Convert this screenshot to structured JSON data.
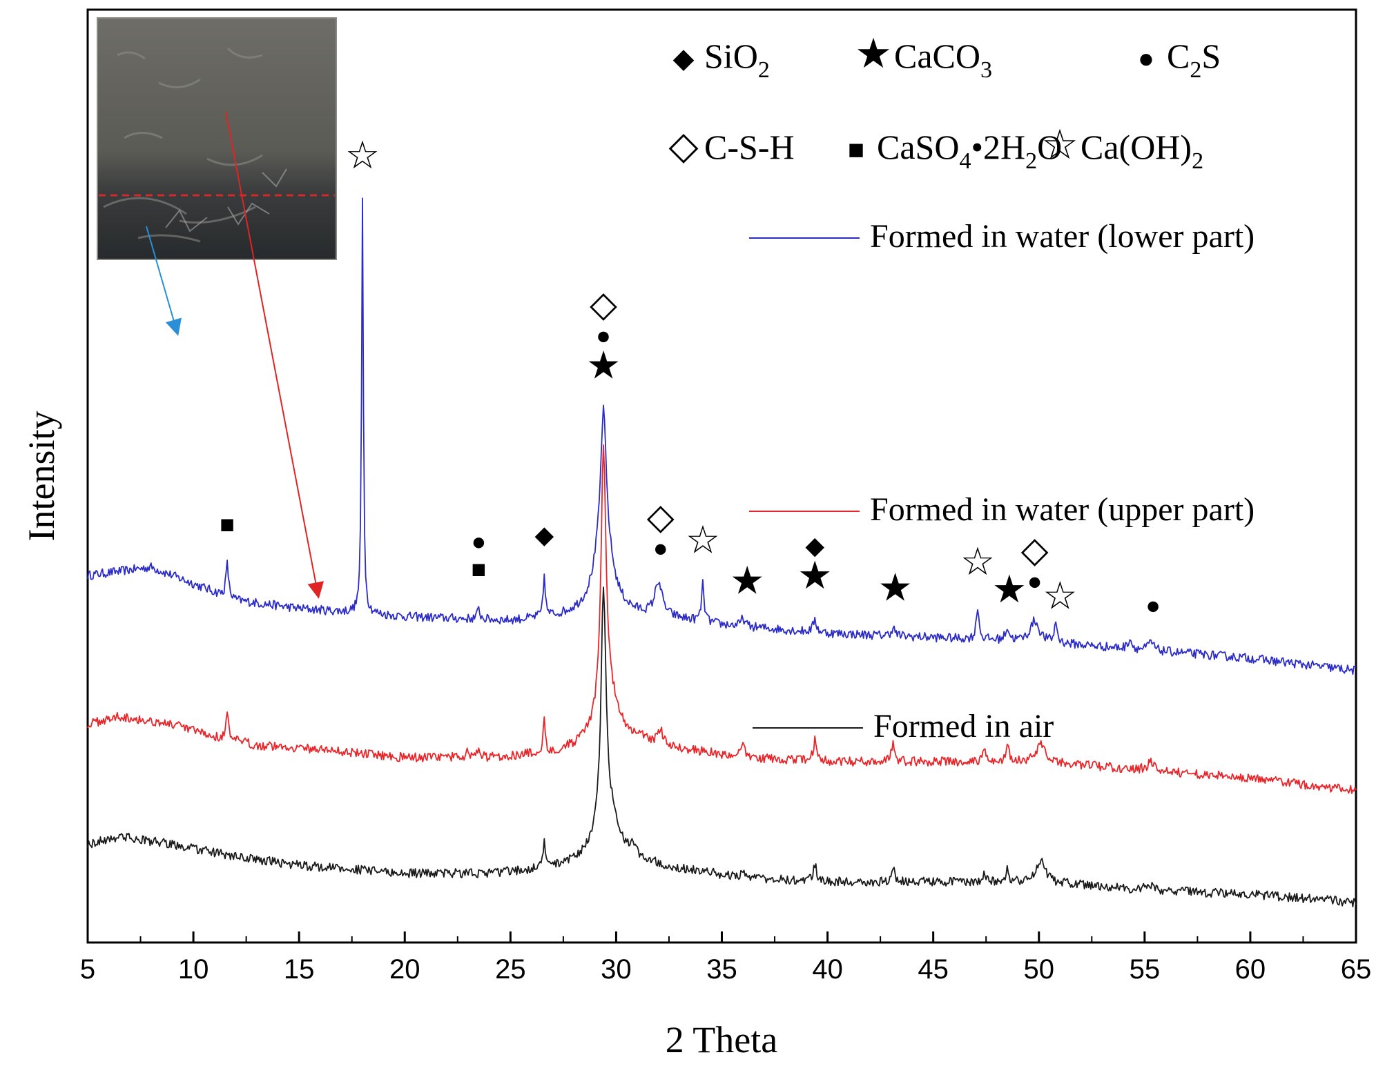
{
  "chart_data": {
    "type": "line",
    "title": "",
    "xlabel": "2 Theta",
    "ylabel": "Intensity",
    "xlim": [
      5,
      65
    ],
    "xticks": [
      5,
      10,
      15,
      20,
      25,
      30,
      35,
      40,
      45,
      50,
      55,
      60,
      65
    ],
    "yticks_shown": false,
    "legend_position": "right, next to each curve",
    "series": [
      {
        "name": "Formed in water (lower part)",
        "color": "#2b2bc8",
        "baseline": [
          [
            5,
            0.82
          ],
          [
            8,
            0.84
          ],
          [
            10,
            0.8
          ],
          [
            12,
            0.76
          ],
          [
            15,
            0.74
          ],
          [
            20,
            0.72
          ],
          [
            25,
            0.71
          ],
          [
            28,
            0.72
          ],
          [
            32,
            0.72
          ],
          [
            35,
            0.7
          ],
          [
            40,
            0.68
          ],
          [
            45,
            0.67
          ],
          [
            50,
            0.66
          ],
          [
            55,
            0.64
          ],
          [
            60,
            0.62
          ],
          [
            65,
            0.59
          ]
        ],
        "peaks": [
          [
            11.6,
            0.08,
            0.15
          ],
          [
            18.0,
            1.0,
            0.1
          ],
          [
            23.5,
            0.025,
            0.15
          ],
          [
            26.6,
            0.1,
            0.12
          ],
          [
            29.4,
            0.3,
            0.3
          ],
          [
            29.4,
            0.2,
            1.0
          ],
          [
            32.0,
            0.08,
            0.4
          ],
          [
            34.1,
            0.09,
            0.15
          ],
          [
            36.0,
            0.02,
            0.2
          ],
          [
            39.4,
            0.03,
            0.2
          ],
          [
            43.1,
            0.02,
            0.2
          ],
          [
            47.1,
            0.08,
            0.15
          ],
          [
            48.5,
            0.03,
            0.2
          ],
          [
            49.8,
            0.05,
            0.5
          ],
          [
            50.8,
            0.05,
            0.15
          ],
          [
            54.3,
            0.025,
            0.2
          ],
          [
            55.3,
            0.02,
            0.3
          ]
        ]
      },
      {
        "name": "Formed in water (upper part)",
        "color": "#e8262a",
        "baseline": [
          [
            5,
            0.46
          ],
          [
            6.5,
            0.48
          ],
          [
            9,
            0.46
          ],
          [
            11,
            0.43
          ],
          [
            13,
            0.41
          ],
          [
            16,
            0.4
          ],
          [
            20,
            0.38
          ],
          [
            24,
            0.38
          ],
          [
            27,
            0.39
          ],
          [
            29,
            0.41
          ],
          [
            31,
            0.42
          ],
          [
            33,
            0.4
          ],
          [
            36,
            0.38
          ],
          [
            40,
            0.37
          ],
          [
            45,
            0.37
          ],
          [
            50,
            0.37
          ],
          [
            55,
            0.35
          ],
          [
            60,
            0.33
          ],
          [
            65,
            0.3
          ]
        ],
        "peaks": [
          [
            11.6,
            0.06,
            0.15
          ],
          [
            23.0,
            0.02,
            0.15
          ],
          [
            23.5,
            0.015,
            0.15
          ],
          [
            26.6,
            0.08,
            0.12
          ],
          [
            29.4,
            0.62,
            0.28
          ],
          [
            29.6,
            0.12,
            1.1
          ],
          [
            32.1,
            0.03,
            0.3
          ],
          [
            36.0,
            0.03,
            0.2
          ],
          [
            39.4,
            0.05,
            0.18
          ],
          [
            43.1,
            0.04,
            0.2
          ],
          [
            47.4,
            0.03,
            0.15
          ],
          [
            48.5,
            0.04,
            0.18
          ],
          [
            50.1,
            0.04,
            0.5
          ],
          [
            55.3,
            0.02,
            0.4
          ]
        ]
      },
      {
        "name": "Formed in air",
        "color": "#1a1a1a",
        "baseline": [
          [
            5,
            0.17
          ],
          [
            6.5,
            0.19
          ],
          [
            9,
            0.17
          ],
          [
            12,
            0.14
          ],
          [
            15,
            0.12
          ],
          [
            20,
            0.1
          ],
          [
            24,
            0.1
          ],
          [
            26.5,
            0.11
          ],
          [
            28.5,
            0.13
          ],
          [
            31,
            0.13
          ],
          [
            33,
            0.11
          ],
          [
            36,
            0.09
          ],
          [
            40,
            0.08
          ],
          [
            45,
            0.08
          ],
          [
            50,
            0.08
          ],
          [
            55,
            0.06
          ],
          [
            60,
            0.05
          ],
          [
            65,
            0.03
          ]
        ],
        "peaks": [
          [
            26.6,
            0.06,
            0.12
          ],
          [
            29.4,
            0.55,
            0.28
          ],
          [
            29.6,
            0.12,
            1.1
          ],
          [
            30.8,
            0.03,
            0.2
          ],
          [
            36.0,
            0.02,
            0.2
          ],
          [
            39.4,
            0.04,
            0.18
          ],
          [
            43.1,
            0.03,
            0.2
          ],
          [
            47.4,
            0.02,
            0.15
          ],
          [
            48.5,
            0.03,
            0.18
          ],
          [
            50.1,
            0.05,
            0.5
          ],
          [
            55.2,
            0.015,
            0.4
          ]
        ]
      }
    ],
    "phase_legend": [
      {
        "symbol": "◆",
        "text": "SiO",
        "sub": "2",
        "rest": ""
      },
      {
        "symbol": "★",
        "text": "CaCO",
        "sub": "3",
        "rest": ""
      },
      {
        "symbol": "●",
        "text": "C",
        "sub": "2",
        "rest": "S"
      },
      {
        "symbol": "◇",
        "text": "C-S-H",
        "sub": "",
        "rest": ""
      },
      {
        "symbol": "■",
        "text": "CaSO",
        "sub": "4",
        "rest": "•2H",
        "sub2": "2",
        "rest2": "O"
      },
      {
        "symbol": "☆",
        "text": "Ca(OH)",
        "sub": "2",
        "rest": ""
      }
    ],
    "peak_markers": [
      {
        "x": 18.0,
        "symbols": [
          "☆"
        ]
      },
      {
        "x": 11.6,
        "symbols": [
          "■"
        ]
      },
      {
        "x": 23.5,
        "symbols": [
          "■",
          "●"
        ]
      },
      {
        "x": 26.6,
        "symbols": [
          "◆"
        ]
      },
      {
        "x": 29.4,
        "symbols": [
          "★",
          "●",
          "◇"
        ]
      },
      {
        "x": 32.1,
        "symbols": [
          "●",
          "◇"
        ]
      },
      {
        "x": 34.1,
        "symbols": [
          "☆"
        ]
      },
      {
        "x": 36.2,
        "symbols": [
          "★"
        ]
      },
      {
        "x": 39.4,
        "symbols": [
          "★",
          "◆"
        ]
      },
      {
        "x": 43.2,
        "symbols": [
          "★"
        ]
      },
      {
        "x": 47.1,
        "symbols": [
          "☆"
        ]
      },
      {
        "x": 48.6,
        "symbols": [
          "★"
        ]
      },
      {
        "x": 49.8,
        "symbols": [
          "●",
          "◇"
        ]
      },
      {
        "x": 51.0,
        "symbols": [
          "☆"
        ]
      },
      {
        "x": 55.4,
        "symbols": [
          "●"
        ]
      }
    ],
    "inset": {
      "type": "photograph",
      "description_colors": {
        "top": "#6b6a64",
        "bottom": "#2c2f31",
        "dashed_line": "#d22a2a"
      },
      "arrows": [
        {
          "to_series": "Formed in water (lower part)",
          "color": "#2a8fd6"
        },
        {
          "to_series": "Formed in water (upper part)",
          "color": "#e02424"
        }
      ]
    }
  }
}
